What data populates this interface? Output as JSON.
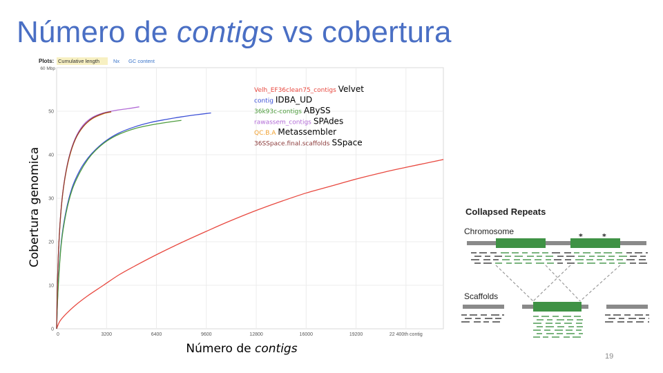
{
  "slide": {
    "title_pre": "Número de ",
    "title_em": "contigs",
    "title_post": " vs cobertura",
    "number": "19"
  },
  "plots_bar": {
    "label": "Plots:",
    "tabs": [
      "Cumulative length",
      "Nx",
      "GC content"
    ],
    "active_index": 0,
    "active_bg": "#f7f0c2",
    "link_color": "#3a74c9"
  },
  "chart_data": {
    "type": "line",
    "xlabel_pre": "Número de ",
    "xlabel_em": "contigs",
    "ylabel": "Cobertura genomica",
    "y_unit": "60 Mbp",
    "xlim": [
      0,
      24800
    ],
    "ylim": [
      0,
      60
    ],
    "x_ticks": [
      0,
      3200,
      6400,
      9600,
      12800,
      16000,
      19200,
      22400
    ],
    "x_tick_labels": [
      "0",
      "3200",
      "6400",
      "9600",
      "12800",
      "16000",
      "19200",
      "22 400th contig"
    ],
    "y_ticks": [
      0,
      10,
      20,
      30,
      40,
      50
    ],
    "y_tick_labels": [
      "0",
      "10",
      "20",
      "30",
      "40",
      "50"
    ],
    "grid": true,
    "legend_position": "top-center",
    "series": [
      {
        "name": "Velh_EF36clean75_contigs",
        "tool": "Velvet",
        "color": "#e8483f",
        "x": [
          0,
          200,
          600,
          1200,
          2000,
          3000,
          4000,
          5000,
          6500,
          8000,
          9600,
          11000,
          12800,
          14500,
          16000,
          17500,
          19200,
          21000,
          22400,
          23600,
          24800
        ],
        "y": [
          0,
          1.7,
          3.4,
          5.4,
          7.6,
          10.0,
          12.4,
          14.4,
          17.2,
          19.8,
          22.4,
          24.6,
          27.2,
          29.4,
          31.2,
          32.7,
          34.4,
          36.0,
          37.1,
          38.0,
          38.9
        ]
      },
      {
        "name": "contig",
        "tool": "IDBA_UD",
        "color": "#3b4fd6",
        "x": [
          0,
          100,
          300,
          600,
          1000,
          1500,
          2000,
          2500,
          3200,
          4000,
          5000,
          6000,
          7000,
          8000,
          9000,
          9900
        ],
        "y": [
          0,
          10,
          20,
          27,
          32.5,
          36.5,
          39.2,
          41.2,
          43.3,
          45.0,
          46.4,
          47.4,
          48.1,
          48.7,
          49.2,
          49.6
        ]
      },
      {
        "name": "36k93c-contigs",
        "tool": "ABySS",
        "color": "#4d9c3d",
        "x": [
          0,
          100,
          300,
          600,
          1000,
          1500,
          2000,
          2500,
          3200,
          4000,
          5000,
          6000,
          7000,
          8000
        ],
        "y": [
          0,
          9.5,
          19.5,
          26.5,
          32.0,
          36.0,
          38.9,
          41.0,
          43.1,
          44.7,
          46.0,
          46.8,
          47.4,
          47.9
        ]
      },
      {
        "name": "rawassem_contigs",
        "tool": "SPAdes",
        "color": "#b26bd6",
        "x": [
          0,
          50,
          150,
          300,
          500,
          800,
          1200,
          1700,
          2300,
          3000,
          3800,
          4600,
          5300
        ],
        "y": [
          0,
          10,
          20,
          28,
          34,
          39.5,
          43.8,
          46.8,
          48.6,
          49.6,
          50.2,
          50.6,
          51.0
        ]
      },
      {
        "name": "QC.B.A",
        "tool": "Metassembler",
        "color": "#f0a030",
        "x": [
          0,
          50,
          150,
          300,
          500,
          800,
          1200,
          1700,
          2300,
          3000,
          3500
        ],
        "y": [
          0,
          10,
          20,
          27.8,
          33.8,
          39.2,
          43.5,
          46.4,
          48.3,
          49.4,
          49.8
        ]
      },
      {
        "name": "36SSpace.final.scaffolds",
        "tool": "SSpace",
        "color": "#8b3a3a",
        "x": [
          0,
          50,
          150,
          300,
          500,
          800,
          1200,
          1700,
          2300,
          3000,
          3500
        ],
        "y": [
          0,
          10,
          20,
          28,
          34,
          39.4,
          43.6,
          46.5,
          48.4,
          49.5,
          49.9
        ]
      }
    ]
  },
  "collapsed_repeats": {
    "title": "Collapsed Repeats",
    "chromosome_label": "Chromosome",
    "scaffolds_label": "Scaffolds",
    "marker": "*",
    "repeat_color": "#3f9245",
    "backbone_color": "#8a8a8a"
  }
}
